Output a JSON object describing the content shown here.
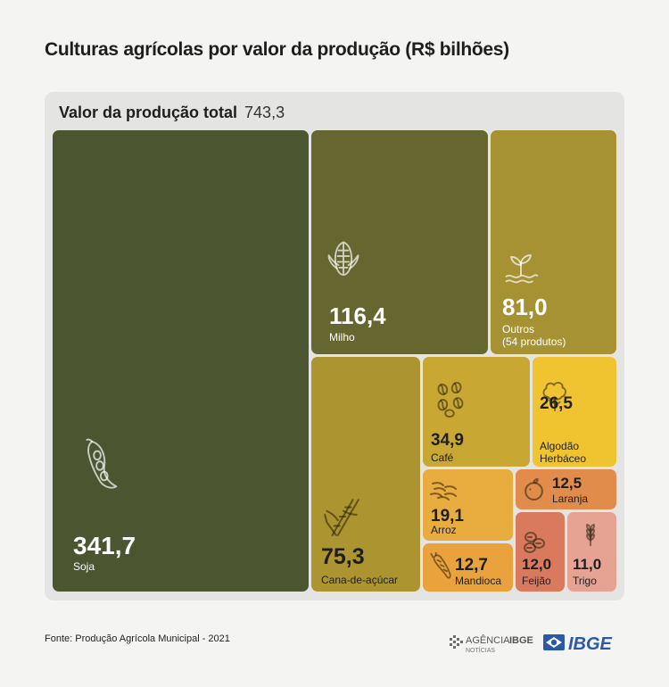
{
  "title": "Culturas agrícolas por valor da produção (R$ bilhões)",
  "total": {
    "label": "Valor da produção total",
    "value": "743,3"
  },
  "chart_data": {
    "type": "treemap",
    "title": "Culturas agrícolas por valor da produção (R$ bilhões)",
    "total": 743.3,
    "items": [
      {
        "name": "Soja",
        "value": 341.7,
        "value_label": "341,7",
        "label": "Soja",
        "color": "#4b5530",
        "icon": "soybean-icon"
      },
      {
        "name": "Milho",
        "value": 116.4,
        "value_label": "116,4",
        "label": "Milho",
        "color": "#666730",
        "icon": "corn-icon"
      },
      {
        "name": "Outros",
        "value": 81.0,
        "value_label": "81,0",
        "label": "Outros",
        "sublabel": "(54 produtos)",
        "color": "#a69232",
        "icon": "sprout-icon"
      },
      {
        "name": "Cana-de-açúcar",
        "value": 75.3,
        "value_label": "75,3",
        "label": "Cana-de-açúcar",
        "color": "#ac9430",
        "icon": "sugarcane-icon"
      },
      {
        "name": "Café",
        "value": 34.9,
        "value_label": "34,9",
        "label": "Café",
        "color": "#c8a833",
        "icon": "coffee-beans-icon"
      },
      {
        "name": "Algodão Herbáceo",
        "value": 26.5,
        "value_label": "26,5",
        "label": "Algodão",
        "sublabel": "Herbáceo",
        "color": "#f0c430",
        "icon": "cotton-icon"
      },
      {
        "name": "Arroz",
        "value": 19.1,
        "value_label": "19,1",
        "label": "Arroz",
        "color": "#e9ac3e",
        "icon": "rice-icon"
      },
      {
        "name": "Mandioca",
        "value": 12.7,
        "value_label": "12,7",
        "label": "Mandioca",
        "color": "#e9a23c",
        "icon": "cassava-icon"
      },
      {
        "name": "Laranja",
        "value": 12.5,
        "value_label": "12,5",
        "label": "Laranja",
        "color": "#e28c4c",
        "icon": "orange-icon"
      },
      {
        "name": "Feijão",
        "value": 12.0,
        "value_label": "12,0",
        "label": "Feijão",
        "color": "#d97a5e",
        "icon": "bean-icon"
      },
      {
        "name": "Trigo",
        "value": 11.0,
        "value_label": "11,0",
        "label": "Trigo",
        "color": "#e6a292",
        "icon": "wheat-icon"
      }
    ]
  },
  "footer": {
    "source": "Fonte: Produção Agrícola Municipal - 2021"
  },
  "logos": {
    "agencia_main": "AGÊNCIA",
    "agencia_bold": "IBGE",
    "agencia_sub": "NOTÍCIAS",
    "ibge": "IBGE"
  }
}
